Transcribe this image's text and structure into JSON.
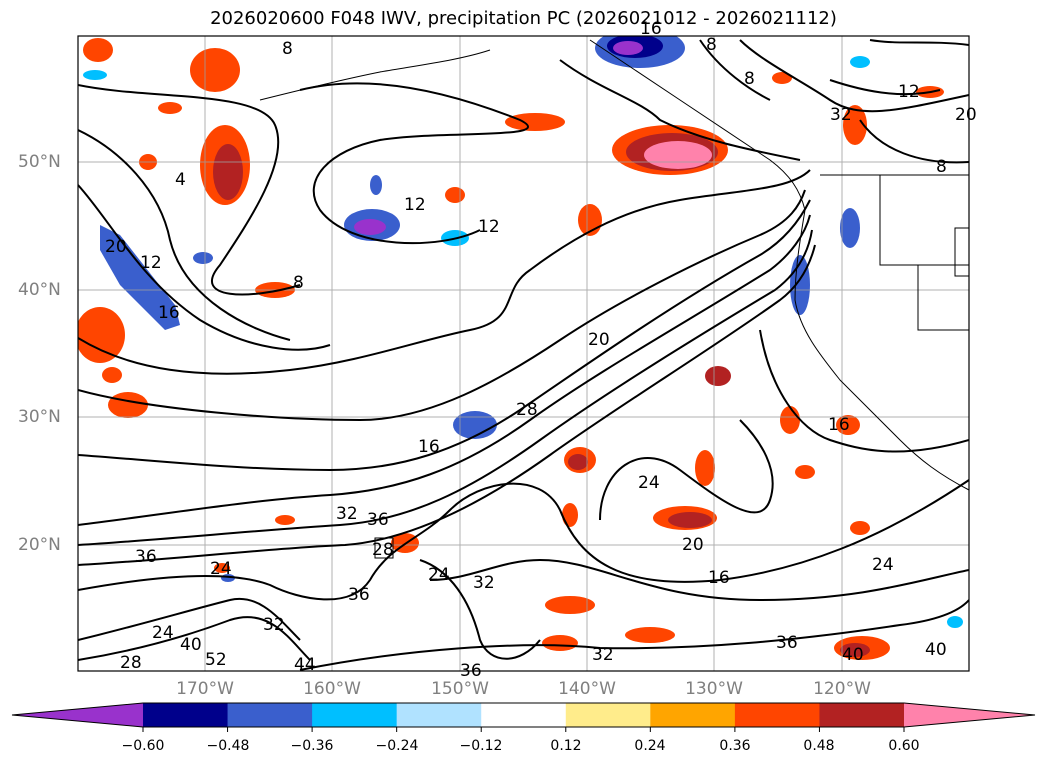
{
  "title": "2026020600 F048 IWV, precipitation PC (2026021012 - 2026021112)",
  "axes": {
    "lat_labels": [
      "50°N",
      "40°N",
      "30°N",
      "20°N"
    ],
    "lon_labels": [
      "170°W",
      "160°W",
      "150°W",
      "140°W",
      "130°W",
      "120°W"
    ]
  },
  "contour_labels": [
    "8",
    "8",
    "8",
    "8",
    "8",
    "4",
    "12",
    "12",
    "12",
    "12",
    "16",
    "16",
    "16",
    "16",
    "16",
    "20",
    "20",
    "20",
    "20",
    "24",
    "24",
    "24",
    "24",
    "24",
    "28",
    "28",
    "28",
    "32",
    "32",
    "32",
    "32",
    "32",
    "36",
    "36",
    "36",
    "36",
    "36",
    "40",
    "40",
    "40",
    "44",
    "52"
  ],
  "colorbar": {
    "ticks": [
      "−0.60",
      "−0.48",
      "−0.36",
      "−0.24",
      "−0.12",
      "0.12",
      "0.24",
      "0.36",
      "0.48",
      "0.60"
    ],
    "colors": [
      "#9932cc",
      "#00008b",
      "#3a5fcd",
      "#00bfff",
      "#b0e2ff",
      "#ffffff",
      "#ffec8b",
      "#ffa500",
      "#ff4500",
      "#b22222",
      "#ff82ab"
    ]
  }
}
